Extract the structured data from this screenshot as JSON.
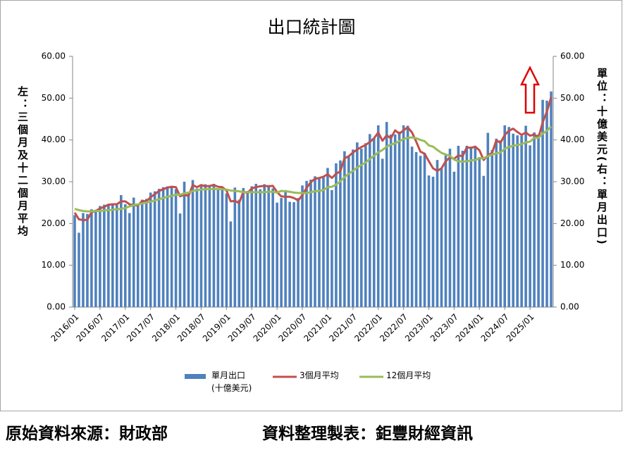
{
  "chart_data": {
    "type": "bar",
    "title": "出口統計圖",
    "y_label": "左：三個月及十二個月平均",
    "y2_label": "單位：十億美元(右：單月出口)",
    "categories": [
      "2016/01",
      null,
      null,
      null,
      null,
      null,
      "2016/07",
      null,
      null,
      null,
      null,
      null,
      "2017/01",
      null,
      null,
      null,
      null,
      null,
      "2017/07",
      null,
      null,
      null,
      null,
      null,
      "2018/01",
      null,
      null,
      null,
      null,
      null,
      "2018/07",
      null,
      null,
      null,
      null,
      null,
      "2019/01",
      null,
      null,
      null,
      null,
      null,
      "2019/07",
      null,
      null,
      null,
      null,
      null,
      "2020/01",
      null,
      null,
      null,
      null,
      null,
      "2020/07",
      null,
      null,
      null,
      null,
      null,
      "2021/01",
      null,
      null,
      null,
      null,
      null,
      "2021/07",
      null,
      null,
      null,
      null,
      null,
      "2022/01",
      null,
      null,
      null,
      null,
      null,
      "2022/07",
      null,
      null,
      null,
      null,
      null,
      "2023/01",
      null,
      null,
      null,
      null,
      null,
      "2023/07",
      null,
      null,
      null,
      null,
      null,
      "2024/01",
      null,
      null,
      null,
      null,
      null,
      "2024/07",
      null,
      null,
      null,
      null,
      null,
      "2025/01",
      null,
      null,
      null,
      null,
      null
    ],
    "series": [
      {
        "name": "單月出口\n(十億美元)",
        "type": "bar",
        "axis": "y2",
        "color": "#4f81bd",
        "values": [
          22.0,
          17.8,
          22.5,
          22.3,
          23.4,
          23.3,
          24.2,
          24.5,
          24.7,
          24.7,
          24.4,
          26.8,
          24.6,
          22.5,
          26.2,
          24.3,
          25.7,
          25.9,
          27.4,
          27.7,
          28.3,
          28.7,
          28.9,
          28.9,
          28.2,
          22.4,
          30.0,
          27.3,
          30.4,
          28.4,
          28.9,
          29.4,
          28.8,
          29.5,
          28.2,
          28.3,
          27.2,
          20.5,
          28.6,
          25.7,
          28.5,
          27.8,
          28.9,
          29.5,
          28.2,
          29.4,
          29.2,
          28.4,
          25.0,
          26.1,
          28.0,
          25.2,
          25.1,
          26.1,
          29.1,
          30.2,
          30.5,
          31.3,
          30.9,
          31.3,
          33.3,
          28.0,
          34.4,
          35.1,
          37.3,
          36.0,
          37.7,
          39.4,
          37.9,
          39.2,
          41.4,
          40.5,
          43.5,
          35.5,
          44.3,
          41.3,
          41.3,
          42.0,
          43.5,
          43.4,
          38.4,
          37.1,
          36.2,
          36.9,
          31.5,
          31.2,
          35.2,
          33.2,
          36.3,
          37.9,
          32.4,
          38.6,
          37.4,
          38.6,
          38.4,
          38.2,
          35.9,
          31.4,
          41.7,
          37.6,
          40.3,
          39.9,
          43.5,
          43.1,
          41.5,
          41.1,
          41.0,
          43.4,
          38.7,
          41.8,
          41.3,
          49.6,
          49.4,
          51.6
        ]
      },
      {
        "name": "3個月平均",
        "type": "line",
        "color": "#c0504d",
        "values": [
          22.6,
          21.0,
          20.8,
          20.9,
          22.7,
          23.0,
          23.6,
          24.0,
          24.5,
          24.6,
          24.6,
          25.3,
          25.3,
          24.6,
          24.4,
          24.3,
          25.4,
          25.3,
          26.3,
          27.0,
          27.8,
          28.2,
          28.6,
          28.8,
          28.7,
          26.5,
          26.9,
          26.6,
          29.2,
          28.7,
          29.2,
          28.9,
          29.0,
          29.2,
          28.8,
          28.7,
          27.9,
          25.3,
          25.4,
          24.9,
          27.6,
          27.3,
          28.4,
          28.7,
          28.9,
          29.0,
          28.9,
          29.0,
          27.5,
          26.5,
          26.4,
          26.4,
          26.1,
          25.5,
          26.8,
          28.5,
          29.9,
          30.7,
          30.9,
          31.2,
          31.8,
          30.9,
          31.9,
          32.5,
          35.6,
          36.1,
          37.0,
          37.7,
          38.3,
          38.8,
          39.5,
          40.4,
          41.8,
          39.8,
          41.1,
          40.4,
          42.3,
          41.5,
          42.3,
          43.0,
          41.8,
          39.6,
          37.2,
          36.7,
          34.9,
          33.2,
          32.6,
          33.2,
          34.9,
          35.8,
          35.5,
          36.3,
          36.1,
          38.2,
          38.1,
          38.4,
          37.5,
          35.2,
          36.3,
          36.9,
          39.9,
          39.3,
          41.2,
          42.2,
          42.7,
          41.9,
          41.2,
          41.8,
          41.0,
          41.3,
          40.6,
          44.2,
          46.8,
          50.2
        ]
      },
      {
        "name": "12個月平均",
        "type": "line",
        "color": "#9bbb59",
        "values": [
          23.5,
          23.2,
          23.0,
          22.9,
          22.9,
          23.0,
          23.0,
          23.1,
          23.2,
          23.3,
          23.4,
          23.5,
          23.7,
          24.1,
          24.4,
          24.6,
          24.8,
          25.0,
          25.2,
          25.5,
          25.8,
          26.1,
          26.4,
          26.6,
          26.9,
          26.9,
          27.2,
          27.4,
          27.8,
          28.0,
          28.1,
          28.2,
          28.2,
          28.3,
          28.2,
          28.2,
          28.1,
          27.9,
          27.8,
          27.7,
          27.5,
          27.5,
          27.5,
          27.5,
          27.5,
          27.5,
          27.6,
          27.6,
          27.4,
          27.8,
          27.7,
          27.6,
          27.4,
          27.3,
          27.3,
          27.3,
          27.5,
          27.7,
          27.8,
          28.0,
          28.7,
          28.8,
          29.3,
          30.1,
          31.1,
          31.9,
          32.6,
          33.4,
          34.0,
          34.6,
          35.4,
          36.2,
          37.0,
          37.6,
          38.4,
          38.9,
          39.2,
          39.7,
          40.2,
          40.5,
          40.6,
          40.4,
          40.0,
          39.7,
          38.7,
          38.4,
          37.6,
          36.9,
          36.5,
          36.2,
          35.3,
          34.9,
          34.8,
          34.9,
          35.1,
          35.2,
          35.6,
          35.6,
          36.1,
          36.5,
          36.8,
          37.0,
          37.9,
          38.3,
          38.6,
          38.8,
          39.0,
          39.4,
          39.6,
          40.5,
          40.5,
          41.5,
          42.2,
          43.2
        ]
      }
    ],
    "ylim": [
      0,
      60
    ],
    "yticks": [
      {
        "value": 0,
        "label": "0.00"
      },
      {
        "value": 10,
        "label": "10.00"
      },
      {
        "value": 20,
        "label": "20.00"
      },
      {
        "value": 30,
        "label": "30.00"
      },
      {
        "value": 40,
        "label": "40.00"
      },
      {
        "value": 50,
        "label": "50.00"
      },
      {
        "value": 60,
        "label": "60.00"
      }
    ],
    "y2lim": [
      0,
      60
    ],
    "y2ticks": [
      {
        "value": 0,
        "label": "0.00"
      },
      {
        "value": 10,
        "label": "10.00"
      },
      {
        "value": 20,
        "label": "20.00"
      },
      {
        "value": 30,
        "label": "30.00"
      },
      {
        "value": 40,
        "label": "40.00"
      },
      {
        "value": 50,
        "label": "50.00"
      },
      {
        "value": 60,
        "label": "60.00"
      }
    ],
    "grid": false
  },
  "footer": [
    "原始資料來源：財政部",
    "資料整理製表：鉅豐財經資訊"
  ]
}
